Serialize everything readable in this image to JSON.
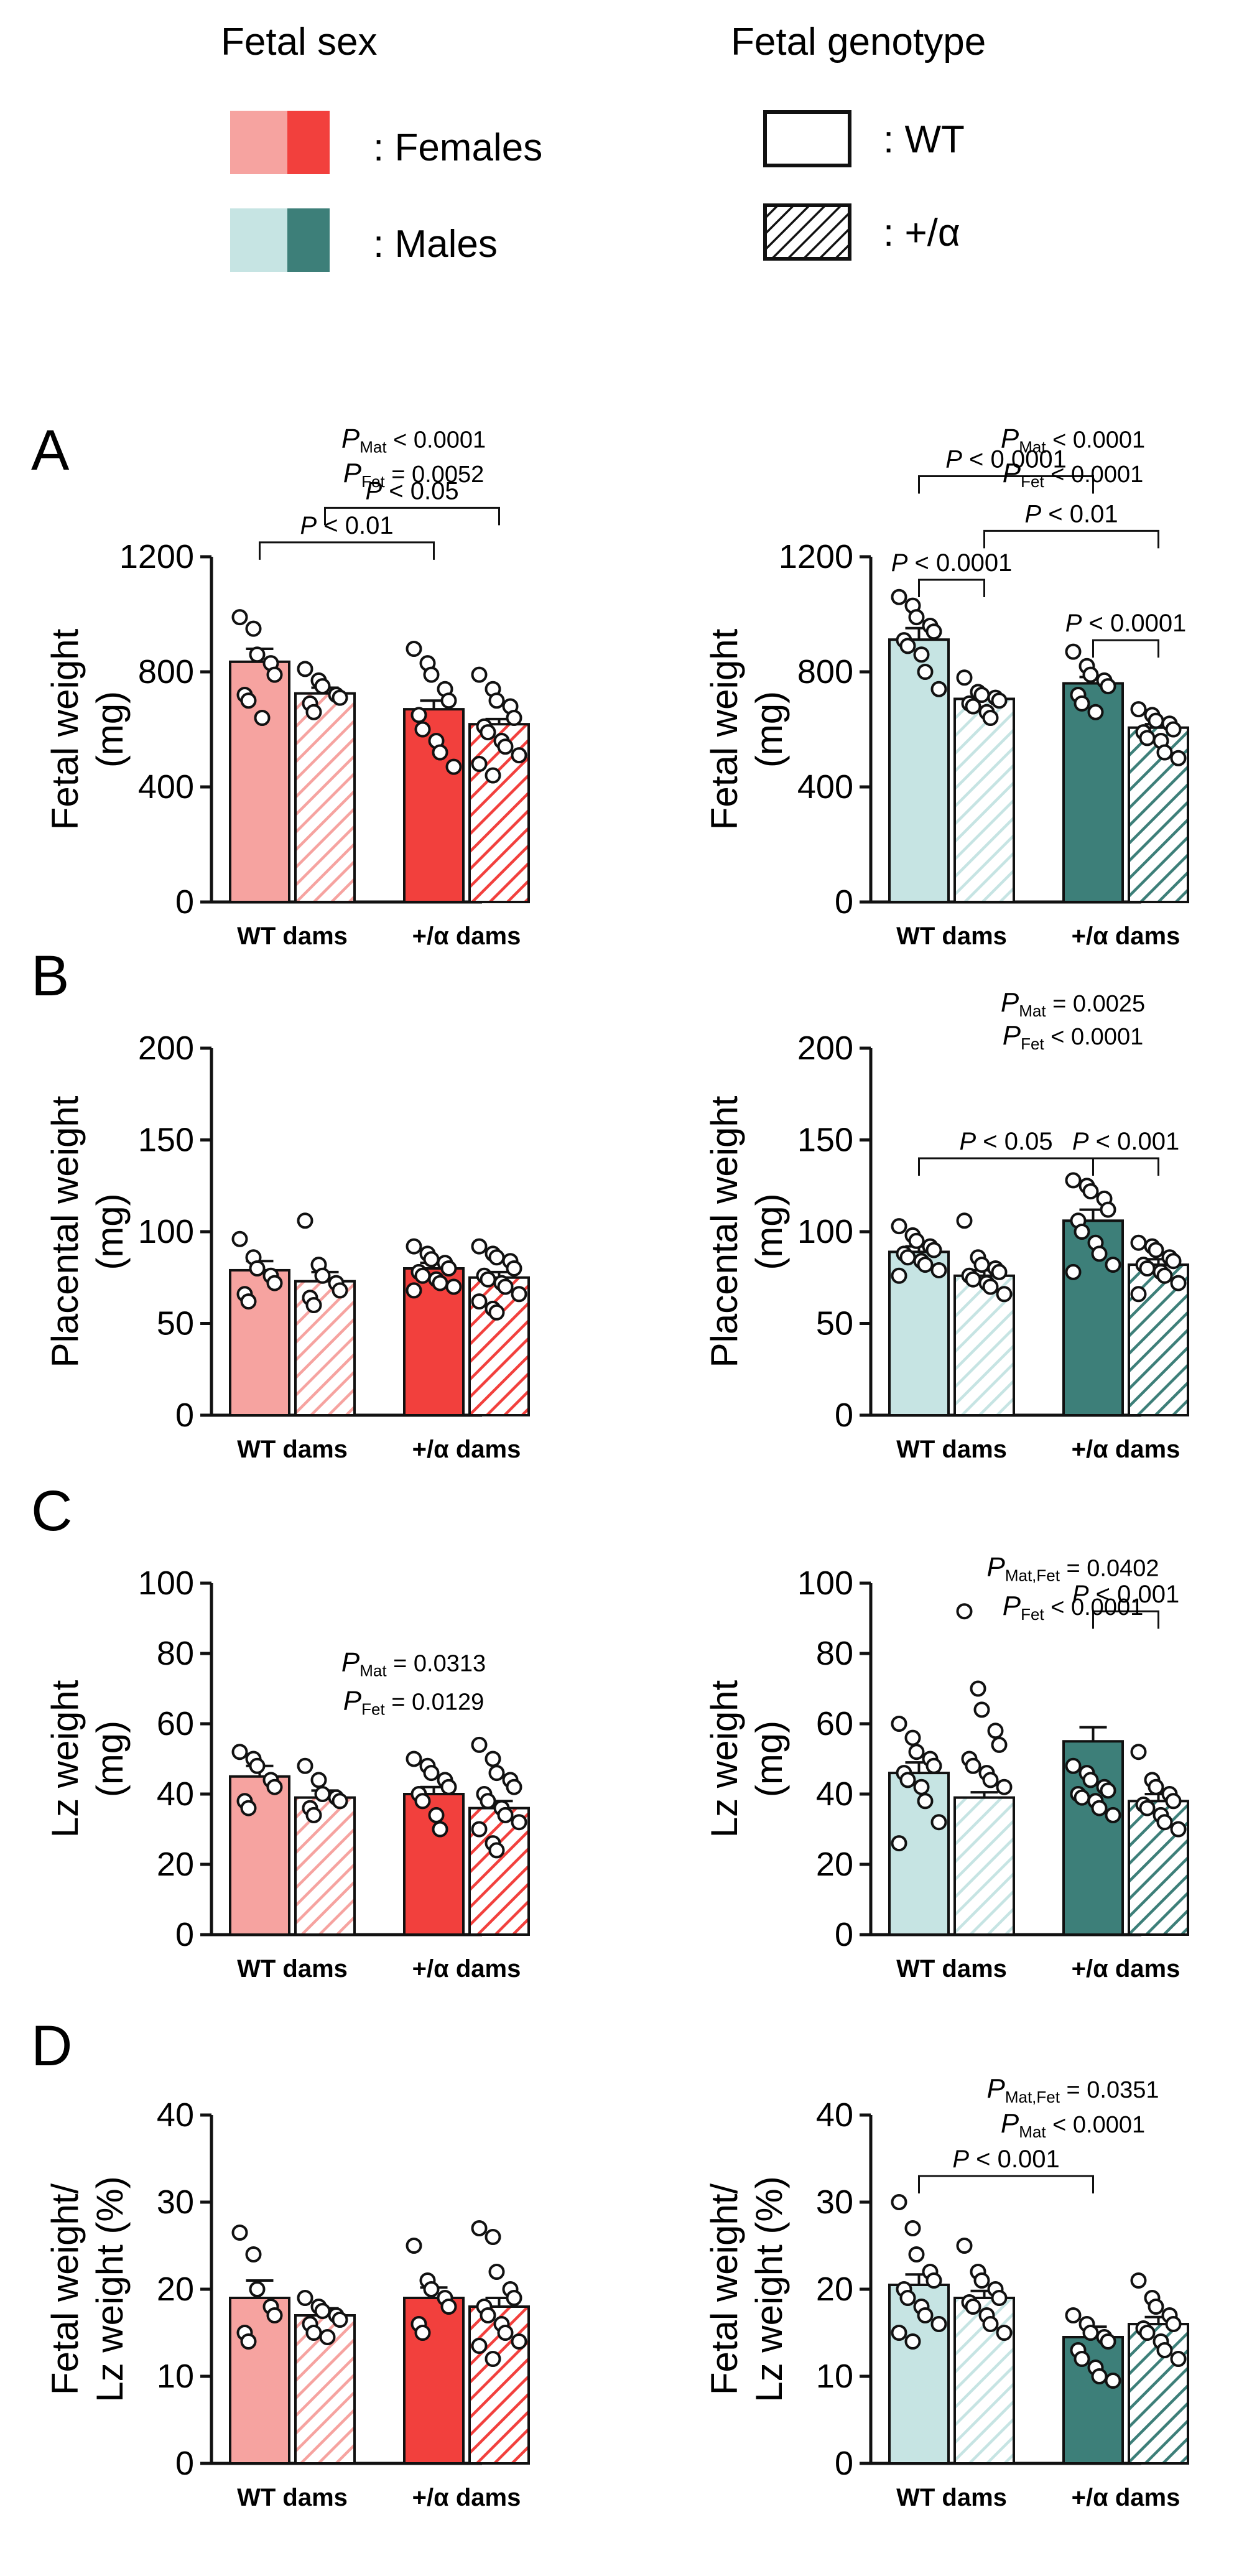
{
  "legend": {
    "sex_title": "Fetal sex",
    "genotype_title": "Fetal genotype",
    "females_label": ":  Females",
    "males_label": ":  Males",
    "wt_label": ":  WT",
    "het_label": ":  +/α"
  },
  "colors": {
    "female_light": "#f6a3a0",
    "female_dark": "#f2403d",
    "male_light": "#c6e4e3",
    "male_dark": "#3d7f79"
  },
  "chart_data": [
    {
      "id": "A-female",
      "panel_letter": "A",
      "type": "bar",
      "sex": "female",
      "ylabel": [
        "Fetal weight",
        "(mg)"
      ],
      "ylim": [
        0,
        1200
      ],
      "yticks": [
        0,
        400,
        800,
        1200
      ],
      "ytick_labels": [
        "0",
        "400",
        "800",
        "1200"
      ],
      "categories": [
        "WT dams",
        "+/α dams"
      ],
      "series": [
        {
          "name": "WT",
          "values": [
            835,
            670
          ]
        },
        {
          "name": "+/α",
          "values": [
            725,
            618
          ]
        }
      ],
      "sem": [
        [
          45,
          30
        ],
        [
          20,
          18
        ]
      ],
      "points": [
        [
          [
            990,
            950,
            860,
            830,
            790,
            720,
            700,
            640
          ],
          [
            880,
            830,
            790,
            740,
            700,
            650,
            600,
            560,
            520,
            470
          ]
        ],
        [
          [
            810,
            770,
            750,
            720,
            710,
            690,
            660
          ],
          [
            790,
            740,
            700,
            680,
            640,
            610,
            590,
            560,
            540,
            510,
            480,
            440
          ]
        ]
      ],
      "stat_lines": [
        {
          "label": "P < 0.01",
          "from": [
            0,
            0
          ],
          "to": [
            1,
            0
          ],
          "level": 1250
        },
        {
          "label": "P < 0.05",
          "from": [
            0,
            1
          ],
          "to": [
            1,
            1
          ],
          "level": 1370
        }
      ],
      "stat_texts": [
        {
          "main": "P",
          "sub": "Mat",
          "rest": " < 0.0001",
          "level": 1580
        },
        {
          "main": "P",
          "sub": "Fet",
          "rest": " = 0.0052",
          "level": 1460
        }
      ]
    },
    {
      "id": "A-male",
      "type": "bar",
      "sex": "male",
      "ylabel": [
        "Fetal weight",
        "(mg)"
      ],
      "ylim": [
        0,
        1200
      ],
      "yticks": [
        0,
        400,
        800,
        1200
      ],
      "ytick_labels": [
        "0",
        "400",
        "800",
        "1200"
      ],
      "categories": [
        "WT dams",
        "+/α dams"
      ],
      "series": [
        {
          "name": "WT",
          "values": [
            912,
            760
          ]
        },
        {
          "name": "+/α",
          "values": [
            706,
            606
          ]
        }
      ],
      "sem": [
        [
          40,
          22
        ],
        [
          18,
          12
        ]
      ],
      "points": [
        [
          [
            1060,
            1030,
            990,
            960,
            940,
            910,
            890,
            860,
            800,
            740
          ],
          [
            870,
            820,
            790,
            770,
            750,
            720,
            690,
            660
          ]
        ],
        [
          [
            780,
            730,
            720,
            710,
            700,
            690,
            680,
            660,
            640
          ],
          [
            670,
            650,
            630,
            620,
            600,
            590,
            570,
            560,
            520,
            500
          ]
        ]
      ],
      "stat_lines": [
        {
          "label": "P < 0.0001",
          "from": [
            0,
            0
          ],
          "to": [
            1,
            0
          ],
          "level": 1480
        },
        {
          "label": "P < 0.0001",
          "from": [
            0,
            0
          ],
          "to": [
            0,
            1
          ],
          "level": 1120
        },
        {
          "label": "P < 0.01",
          "from": [
            0,
            1
          ],
          "to": [
            1,
            1
          ],
          "level": 1290
        },
        {
          "label": "P < 0.0001",
          "from": [
            1,
            0
          ],
          "to": [
            1,
            1
          ],
          "level": 910
        }
      ],
      "stat_texts": [
        {
          "main": "P",
          "sub": "Mat",
          "rest": " < 0.0001",
          "level": 1580
        },
        {
          "main": "P",
          "sub": "Fet",
          "rest": " < 0.0001",
          "level": 1460
        }
      ]
    },
    {
      "id": "B-female",
      "panel_letter": "B",
      "type": "bar",
      "sex": "female",
      "ylabel": [
        "Placental weight",
        "(mg)"
      ],
      "ylim": [
        0,
        200
      ],
      "yticks": [
        0,
        50,
        100,
        150,
        200
      ],
      "ytick_labels": [
        "0",
        "50",
        "100",
        "150",
        "200"
      ],
      "categories": [
        "WT dams",
        "+/α dams"
      ],
      "series": [
        {
          "name": "WT",
          "values": [
            79,
            80
          ]
        },
        {
          "name": "+/α",
          "values": [
            73,
            75
          ]
        }
      ],
      "sem": [
        [
          5,
          3
        ],
        [
          5,
          3
        ]
      ],
      "points": [
        [
          [
            96,
            86,
            80,
            76,
            72,
            66,
            62
          ],
          [
            92,
            88,
            85,
            83,
            80,
            78,
            76,
            74,
            72,
            70,
            68
          ]
        ],
        [
          [
            106,
            82,
            76,
            72,
            68,
            64,
            60
          ],
          [
            92,
            88,
            86,
            84,
            80,
            76,
            74,
            72,
            70,
            66,
            62,
            58,
            56
          ]
        ]
      ],
      "stat_lines": [],
      "stat_texts": []
    },
    {
      "id": "B-male",
      "type": "bar",
      "sex": "male",
      "ylabel": [
        "Placental weight",
        "(mg)"
      ],
      "ylim": [
        0,
        200
      ],
      "yticks": [
        0,
        50,
        100,
        150,
        200
      ],
      "ytick_labels": [
        "0",
        "50",
        "100",
        "150",
        "200"
      ],
      "categories": [
        "WT dams",
        "+/α dams"
      ],
      "series": [
        {
          "name": "WT",
          "values": [
            89,
            106
          ]
        },
        {
          "name": "+/α",
          "values": [
            76,
            82
          ]
        }
      ],
      "sem": [
        [
          3,
          6
        ],
        [
          3,
          3
        ]
      ],
      "points": [
        [
          [
            103,
            98,
            95,
            92,
            90,
            88,
            86,
            84,
            82,
            79,
            76
          ],
          [
            128,
            125,
            122,
            118,
            112,
            106,
            100,
            94,
            88,
            82,
            78
          ]
        ],
        [
          [
            106,
            86,
            82,
            80,
            78,
            76,
            74,
            72,
            70,
            66
          ],
          [
            94,
            92,
            90,
            86,
            84,
            82,
            80,
            78,
            76,
            72,
            66
          ]
        ]
      ],
      "stat_lines": [
        {
          "label": "P < 0.05",
          "from": [
            0,
            0
          ],
          "to": [
            1,
            0
          ],
          "level": 140
        },
        {
          "label": "P < 0.001",
          "from": [
            1,
            0
          ],
          "to": [
            1,
            1
          ],
          "level": 140
        }
      ],
      "stat_texts": [
        {
          "main": "P",
          "sub": "Mat",
          "rest": " = 0.0025",
          "level": 220
        },
        {
          "main": "P",
          "sub": "Fet",
          "rest": " < 0.0001",
          "level": 202
        }
      ]
    },
    {
      "id": "C-female",
      "panel_letter": "C",
      "type": "bar",
      "sex": "female",
      "ylabel": [
        "Lz weight",
        "(mg)"
      ],
      "ylim": [
        0,
        100
      ],
      "yticks": [
        0,
        20,
        40,
        60,
        80,
        100
      ],
      "ytick_labels": [
        "0",
        "20",
        "40",
        "60",
        "80",
        "100"
      ],
      "categories": [
        "WT dams",
        "+/α dams"
      ],
      "series": [
        {
          "name": "WT",
          "values": [
            45,
            40
          ]
        },
        {
          "name": "+/α",
          "values": [
            39,
            36
          ]
        }
      ],
      "sem": [
        [
          3,
          2
        ],
        [
          2,
          2
        ]
      ],
      "points": [
        [
          [
            52,
            50,
            48,
            44,
            42,
            38,
            36
          ],
          [
            50,
            48,
            46,
            44,
            42,
            40,
            38,
            34,
            30
          ]
        ],
        [
          [
            48,
            44,
            40,
            39,
            38,
            36,
            34
          ],
          [
            54,
            50,
            46,
            44,
            42,
            40,
            38,
            36,
            34,
            32,
            30,
            26,
            24
          ]
        ]
      ],
      "stat_lines": [],
      "stat_texts": [
        {
          "main": "P",
          "sub": "Mat",
          "rest": " = 0.0313",
          "level": 75
        },
        {
          "main": "P",
          "sub": "Fet",
          "rest": " = 0.0129",
          "level": 64
        }
      ]
    },
    {
      "id": "C-male",
      "type": "bar",
      "sex": "male",
      "ylabel": [
        "Lz weight",
        "(mg)"
      ],
      "ylim": [
        0,
        100
      ],
      "yticks": [
        0,
        20,
        40,
        60,
        80,
        100
      ],
      "ytick_labels": [
        "0",
        "20",
        "40",
        "60",
        "80",
        "100"
      ],
      "categories": [
        "WT dams",
        "+/α dams"
      ],
      "series": [
        {
          "name": "WT",
          "values": [
            46,
            55
          ]
        },
        {
          "name": "+/α",
          "values": [
            39,
            38
          ]
        }
      ],
      "sem": [
        [
          3,
          4
        ],
        [
          1.5,
          2
        ]
      ],
      "points": [
        [
          [
            60,
            56,
            52,
            50,
            48,
            46,
            44,
            42,
            38,
            32,
            26
          ],
          [
            48,
            46,
            44,
            42,
            41,
            40,
            39,
            38,
            36,
            34
          ]
        ],
        [
          [
            92,
            70,
            64,
            58,
            54,
            50,
            48,
            46,
            44,
            42
          ],
          [
            52,
            44,
            42,
            40,
            38,
            37,
            36,
            34,
            32,
            30
          ]
        ]
      ],
      "stat_lines": [
        {
          "label": "P < 0.001",
          "from": [
            1,
            0
          ],
          "to": [
            1,
            1
          ],
          "level": 92
        }
      ],
      "stat_texts": [
        {
          "main": "P",
          "sub": "Mat,Fet",
          "rest": " = 0.0402",
          "level": 102
        },
        {
          "main": "P",
          "sub": "Fet",
          "rest": " < 0.0001",
          "level": 91
        }
      ]
    },
    {
      "id": "D-female",
      "panel_letter": "D",
      "type": "bar",
      "sex": "female",
      "ylabel": [
        "Fetal weight/",
        "Lz weight (%)"
      ],
      "ylim": [
        0,
        40
      ],
      "yticks": [
        0,
        10,
        20,
        30,
        40
      ],
      "ytick_labels": [
        "0",
        "10",
        "20",
        "30",
        "40"
      ],
      "categories": [
        "WT dams",
        "+/α dams"
      ],
      "series": [
        {
          "name": "WT",
          "values": [
            19,
            19
          ]
        },
        {
          "name": "+/α",
          "values": [
            17,
            18
          ]
        }
      ],
      "sem": [
        [
          2,
          1.2
        ],
        [
          0.8,
          1
        ]
      ],
      "points": [
        [
          [
            26.5,
            24,
            20,
            18,
            17,
            15,
            14
          ],
          [
            25,
            21,
            20,
            19,
            18,
            16,
            15
          ]
        ],
        [
          [
            19,
            18,
            17.5,
            17,
            16.5,
            16,
            15,
            14.5
          ],
          [
            27,
            26,
            22,
            20,
            19,
            18,
            17,
            16,
            15,
            14,
            13.5,
            12
          ]
        ]
      ],
      "stat_lines": [],
      "stat_texts": []
    },
    {
      "id": "D-male",
      "type": "bar",
      "sex": "male",
      "ylabel": [
        "Fetal weight/",
        "Lz weight (%)"
      ],
      "ylim": [
        0,
        40
      ],
      "yticks": [
        0,
        10,
        20,
        30,
        40
      ],
      "ytick_labels": [
        "0",
        "10",
        "20",
        "30",
        "40"
      ],
      "categories": [
        "WT dams",
        "+/α dams"
      ],
      "series": [
        {
          "name": "WT",
          "values": [
            20.5,
            14.5
          ]
        },
        {
          "name": "+/α",
          "values": [
            19,
            16
          ]
        }
      ],
      "sem": [
        [
          1.2,
          1.2
        ],
        [
          0.8,
          0.8
        ]
      ],
      "points": [
        [
          [
            30,
            27,
            24,
            22,
            21,
            20,
            19,
            18,
            17,
            16,
            15,
            14
          ],
          [
            17,
            16,
            15,
            14.5,
            14,
            13,
            12,
            11,
            10,
            9.5
          ]
        ],
        [
          [
            25,
            22,
            21,
            20,
            19,
            18.5,
            18,
            17,
            16,
            15
          ],
          [
            21,
            19,
            18,
            17,
            16,
            15.5,
            15,
            14,
            13,
            12
          ]
        ]
      ],
      "stat_lines": [
        {
          "label": "P < 0.001",
          "from": [
            0,
            0
          ],
          "to": [
            1,
            0
          ],
          "level": 33
        }
      ],
      "stat_texts": [
        {
          "main": "P",
          "sub": "Mat,Fet",
          "rest": " = 0.0351",
          "level": 42
        },
        {
          "main": "P",
          "sub": "Mat",
          "rest": " < 0.0001",
          "level": 38
        }
      ]
    }
  ]
}
